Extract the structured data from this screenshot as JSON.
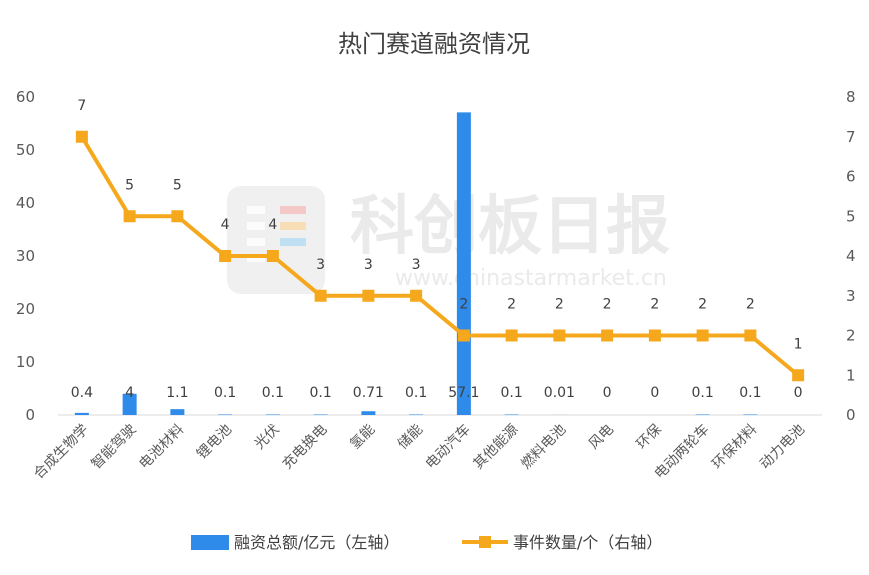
{
  "chart_data": {
    "type": "bar+line",
    "title": "热门赛道融资情况",
    "categories": [
      "合成生物学",
      "智能驾驶",
      "电池材料",
      "锂电池",
      "光伏",
      "充电换电",
      "氢能",
      "储能",
      "电动汽车",
      "其他能源",
      "燃料电池",
      "风电",
      "环保",
      "电动两轮车",
      "环保材料",
      "动力电池"
    ],
    "series": [
      {
        "name": "融资总额/亿元（左轴）",
        "type": "bar",
        "axis": "left",
        "color": "#2E8BEA",
        "values": [
          0.4,
          4,
          1.1,
          0.1,
          0.1,
          0.1,
          0.71,
          0.1,
          57.1,
          0.1,
          0.01,
          0,
          0,
          0.1,
          0.1,
          0
        ],
        "labels": [
          "0.4",
          "4",
          "1.1",
          "0.1",
          "0.1",
          "0.1",
          "0.71",
          "0.1",
          "57.1",
          "0.1",
          "0.01",
          "0",
          "0",
          "0.1",
          "0.1",
          "0"
        ]
      },
      {
        "name": "事件数量/个（右轴）",
        "type": "line",
        "axis": "right",
        "color": "#F5A81C",
        "values": [
          7,
          5,
          5,
          4,
          4,
          3,
          3,
          3,
          2,
          2,
          2,
          2,
          2,
          2,
          2,
          1
        ]
      }
    ],
    "y_left": {
      "min": 0,
      "max": 60,
      "ticks": [
        0,
        10,
        20,
        30,
        40,
        50,
        60
      ]
    },
    "y_right": {
      "min": 0,
      "max": 8,
      "ticks": [
        0,
        1,
        2,
        3,
        4,
        5,
        6,
        7,
        8
      ]
    },
    "grid": false,
    "legend": "bottom"
  },
  "watermark": {
    "name": "科创板日报",
    "url": "www.chinastarmarket.cn"
  }
}
